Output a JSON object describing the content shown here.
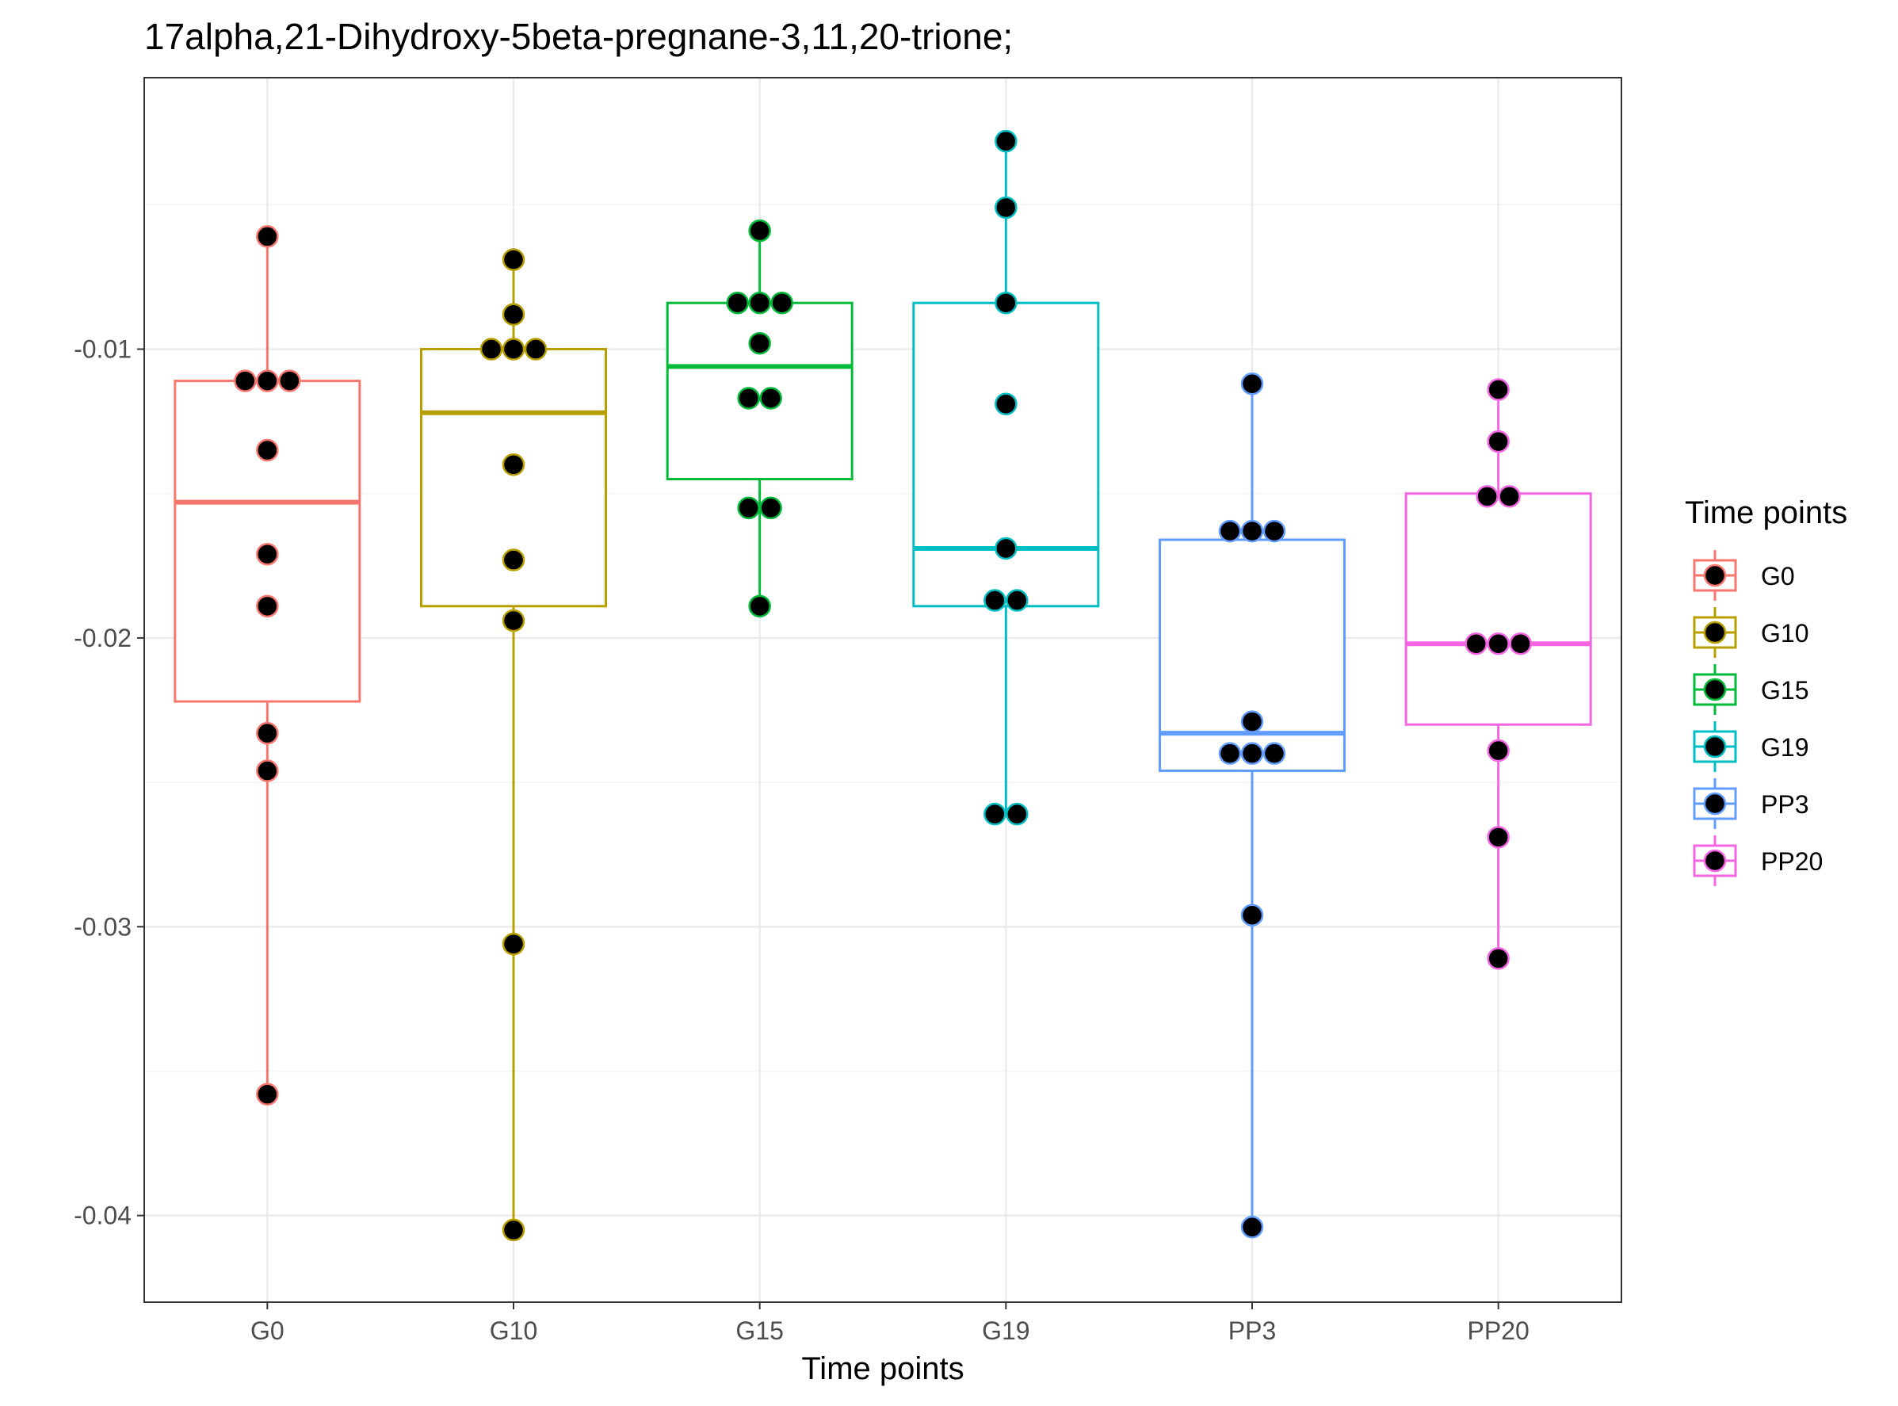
{
  "chart_data": {
    "type": "box",
    "title": "17alpha,21-Dihydroxy-5beta-pregnane-3,11,20-trione;",
    "xlabel": "Time points",
    "ylabel": "",
    "ylim": [
      -0.043,
      -0.0006
    ],
    "y_ticks": [
      -0.01,
      -0.02,
      -0.03,
      -0.04
    ],
    "y_tick_labels": [
      "-0.01",
      "-0.02",
      "-0.03",
      "-0.04"
    ],
    "categories": [
      "G0",
      "G10",
      "G15",
      "G19",
      "PP3",
      "PP20"
    ],
    "legend": {
      "title": "Time points",
      "position": "right"
    },
    "grid": true,
    "series": [
      {
        "name": "G0",
        "color": "#F8766D",
        "box": {
          "min": -0.0358,
          "q1": -0.0222,
          "median": -0.0153,
          "q3": -0.0111,
          "max": -0.0061
        },
        "points": [
          -0.0061,
          -0.0111,
          -0.0111,
          -0.0111,
          -0.0135,
          -0.0171,
          -0.0189,
          -0.0233,
          -0.0246,
          -0.0358
        ]
      },
      {
        "name": "G10",
        "color": "#B79F00",
        "box": {
          "min": -0.0405,
          "q1": -0.0189,
          "median": -0.0122,
          "q3": -0.01,
          "max": -0.0069
        },
        "points": [
          -0.0069,
          -0.0088,
          -0.01,
          -0.01,
          -0.01,
          -0.014,
          -0.0173,
          -0.0194,
          -0.0306,
          -0.0405
        ]
      },
      {
        "name": "G15",
        "color": "#00BA38",
        "box": {
          "min": -0.0189,
          "q1": -0.0145,
          "median": -0.0106,
          "q3": -0.0084,
          "max": -0.0059
        },
        "points": [
          -0.0059,
          -0.0084,
          -0.0084,
          -0.0084,
          -0.0098,
          -0.0117,
          -0.0117,
          -0.0155,
          -0.0155,
          -0.0189
        ]
      },
      {
        "name": "G19",
        "color": "#00BFC4",
        "box": {
          "min": -0.0261,
          "q1": -0.0189,
          "median": -0.0169,
          "q3": -0.0084,
          "max": -0.0028
        },
        "points": [
          -0.0028,
          -0.0051,
          -0.0084,
          -0.0119,
          -0.0169,
          -0.0187,
          -0.0187,
          -0.0261,
          -0.0261
        ]
      },
      {
        "name": "PP3",
        "color": "#619CFF",
        "box": {
          "min": -0.0404,
          "q1": -0.0246,
          "median": -0.0233,
          "q3": -0.0166,
          "max": -0.0112
        },
        "points": [
          -0.0112,
          -0.0163,
          -0.0163,
          -0.0163,
          -0.0229,
          -0.024,
          -0.024,
          -0.024,
          -0.0296,
          -0.0404
        ]
      },
      {
        "name": "PP20",
        "color": "#F564E3",
        "box": {
          "min": -0.0311,
          "q1": -0.023,
          "median": -0.0202,
          "q3": -0.015,
          "max": -0.0114
        },
        "points": [
          -0.0114,
          -0.0132,
          -0.0151,
          -0.0151,
          -0.0202,
          -0.0202,
          -0.0202,
          -0.0239,
          -0.0269,
          -0.0311
        ]
      }
    ]
  }
}
